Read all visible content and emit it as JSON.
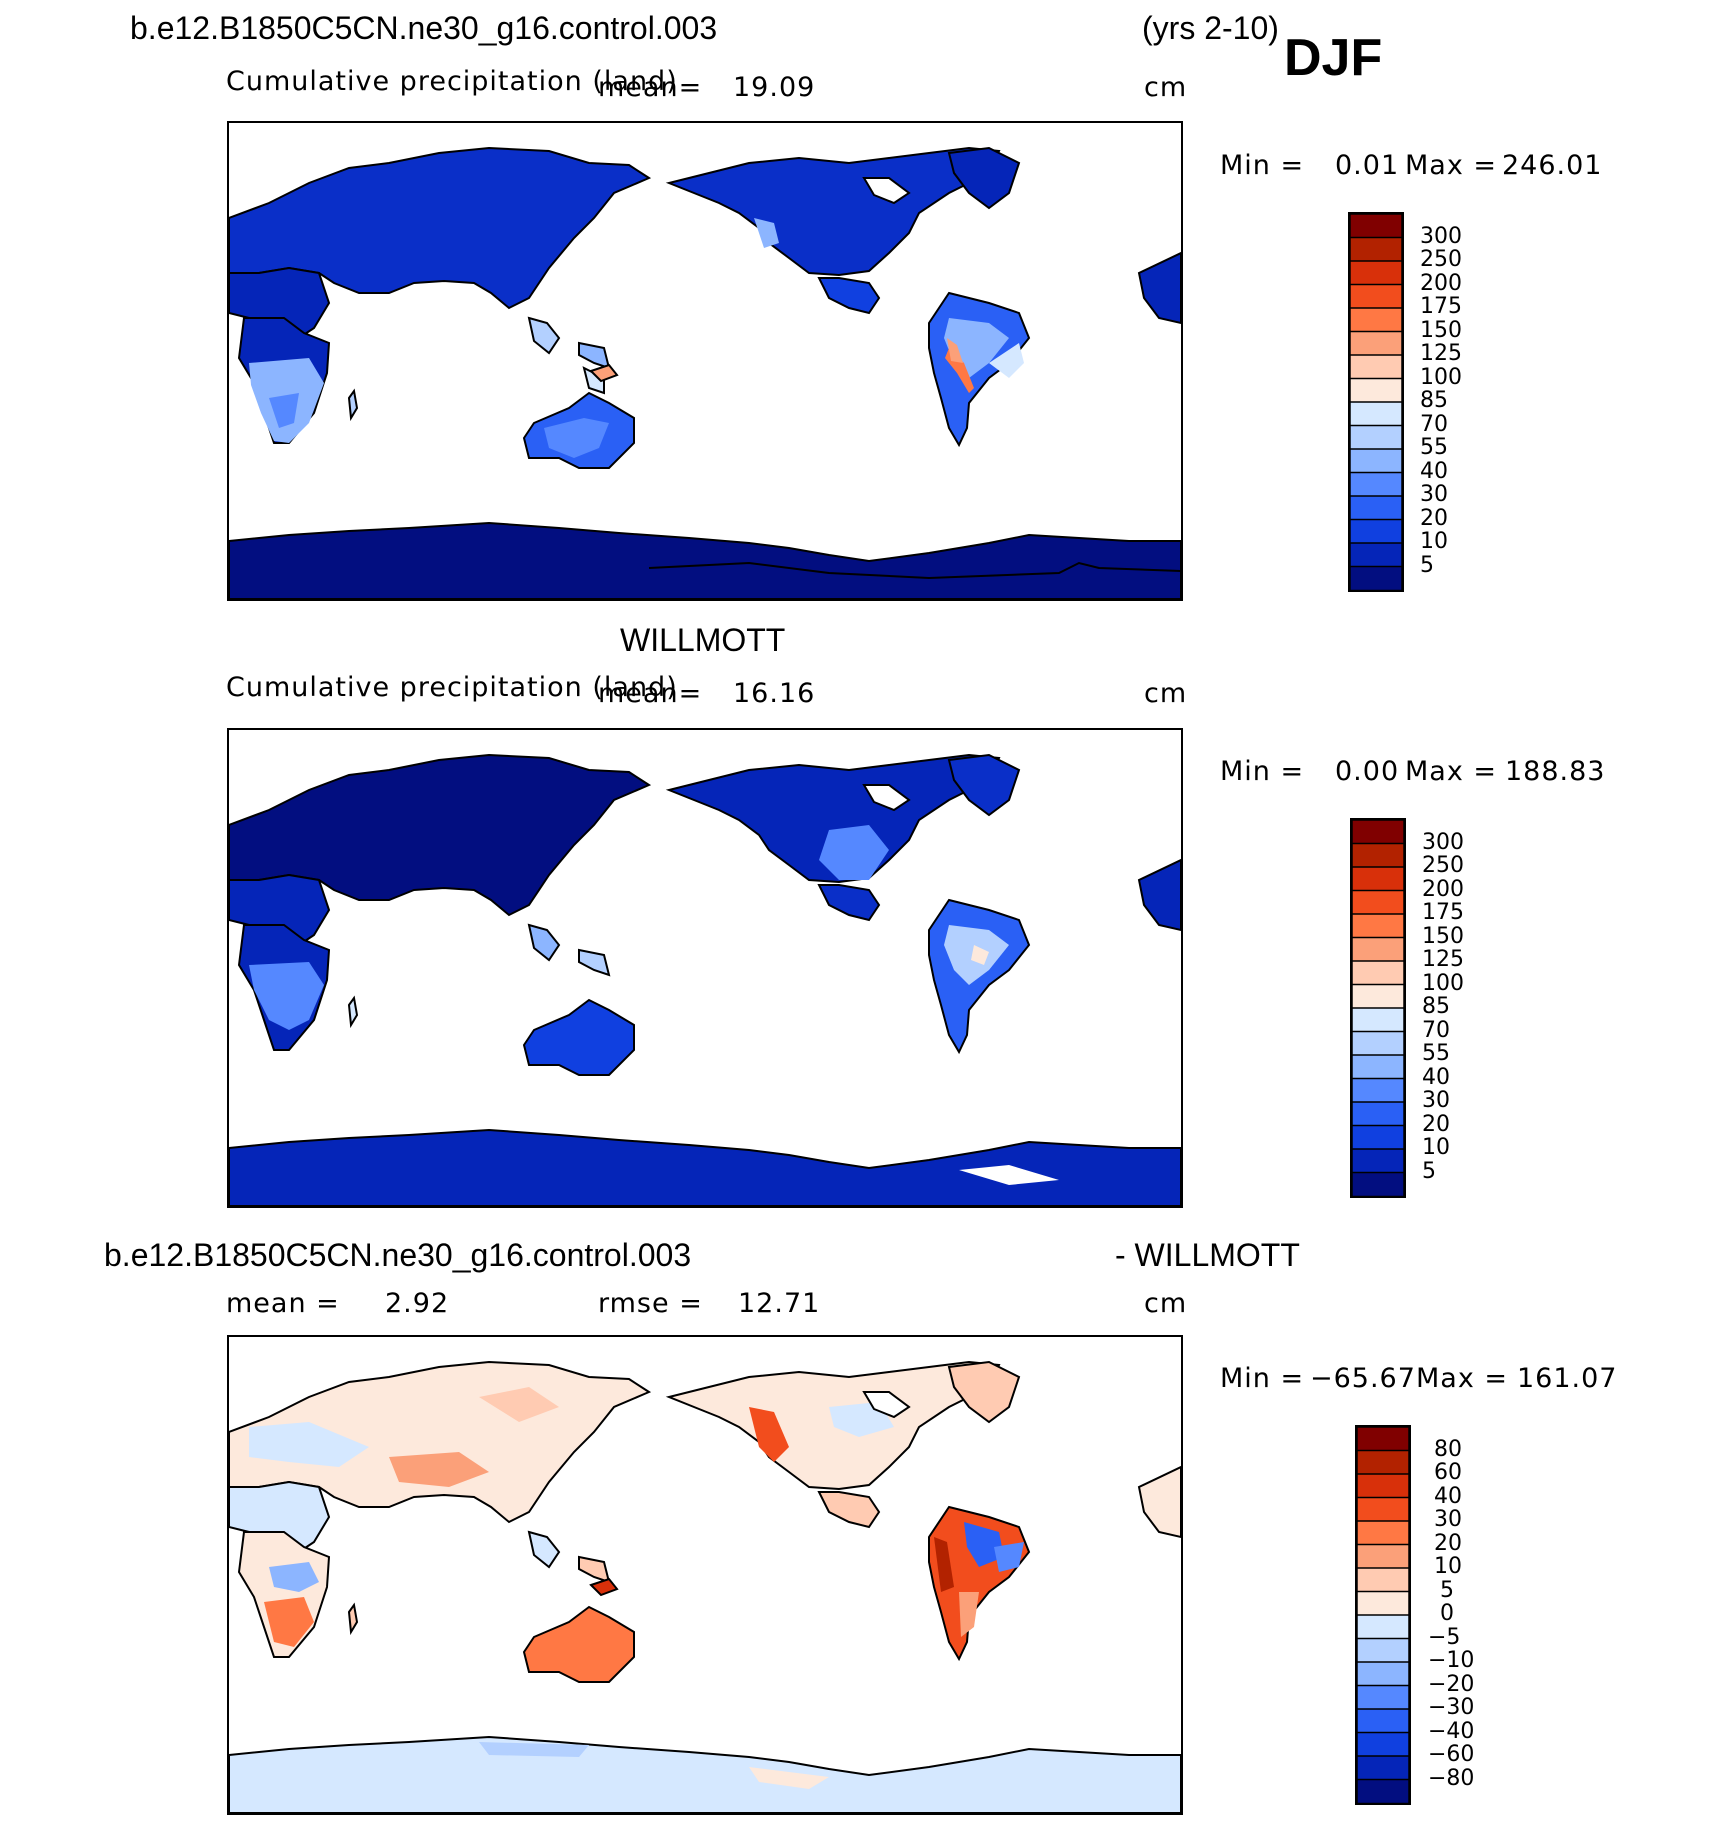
{
  "header": {
    "case_name": "b.e12.B1850C5CN.ne30_g16.control.003",
    "years": "(yrs 2-10)",
    "season": "DJF"
  },
  "panels": [
    {
      "id": "model",
      "title": "",
      "variable": "Cumulative precipitation (land)",
      "mean_label": "mean=",
      "mean_value": "19.09",
      "units": "cm",
      "min_label": "Min =",
      "min_value": "0.01",
      "max_label": "Max =",
      "max_value": "246.01",
      "colorbar_labels": [
        "300",
        "250",
        "200",
        "175",
        "150",
        "125",
        "100",
        "85",
        "70",
        "55",
        "40",
        "30",
        "20",
        "10",
        "5"
      ]
    },
    {
      "id": "obs",
      "title": "WILLMOTT",
      "variable": "Cumulative precipitation (land)",
      "mean_label": "mean=",
      "mean_value": "16.16",
      "units": "cm",
      "min_label": "Min =",
      "min_value": "0.00",
      "max_label": "Max =",
      "max_value": "188.83",
      "colorbar_labels": [
        "300",
        "250",
        "200",
        "175",
        "150",
        "125",
        "100",
        "85",
        "70",
        "55",
        "40",
        "30",
        "20",
        "10",
        "5"
      ]
    },
    {
      "id": "diff",
      "title_left": "b.e12.B1850C5CN.ne30_g16.control.003",
      "title_right": "- WILLMOTT",
      "mean_label": "mean =",
      "mean_value": "2.92",
      "rmse_label": "rmse =",
      "rmse_value": "12.71",
      "units": "cm",
      "min_label": "Min =",
      "min_value": "−65.67",
      "max_label": "Max =",
      "max_value": "161.07",
      "colorbar_labels": [
        "80",
        "60",
        "40",
        "30",
        "20",
        "10",
        "5",
        "0",
        "−5",
        "−10",
        "−20",
        "−30",
        "−40",
        "−60",
        "−80"
      ]
    }
  ],
  "colorbars": {
    "precip_colors": [
      "#800000",
      "#b22200",
      "#d8300a",
      "#f24d1d",
      "#ff7844",
      "#fba079",
      "#ffcbb2",
      "#fde9dc",
      "#d5e8ff",
      "#b3d0ff",
      "#8cb5ff",
      "#5588ff",
      "#2a60f5",
      "#1040e0",
      "#0525b8",
      "#020e80"
    ],
    "diff_colors": [
      "#800000",
      "#b22200",
      "#d8300a",
      "#f24d1d",
      "#ff7844",
      "#fba079",
      "#ffcbb2",
      "#fde9dc",
      "#d5e8ff",
      "#b3d0ff",
      "#8cb5ff",
      "#5588ff",
      "#2a60f5",
      "#1040e0",
      "#0525b8",
      "#020e80"
    ]
  }
}
